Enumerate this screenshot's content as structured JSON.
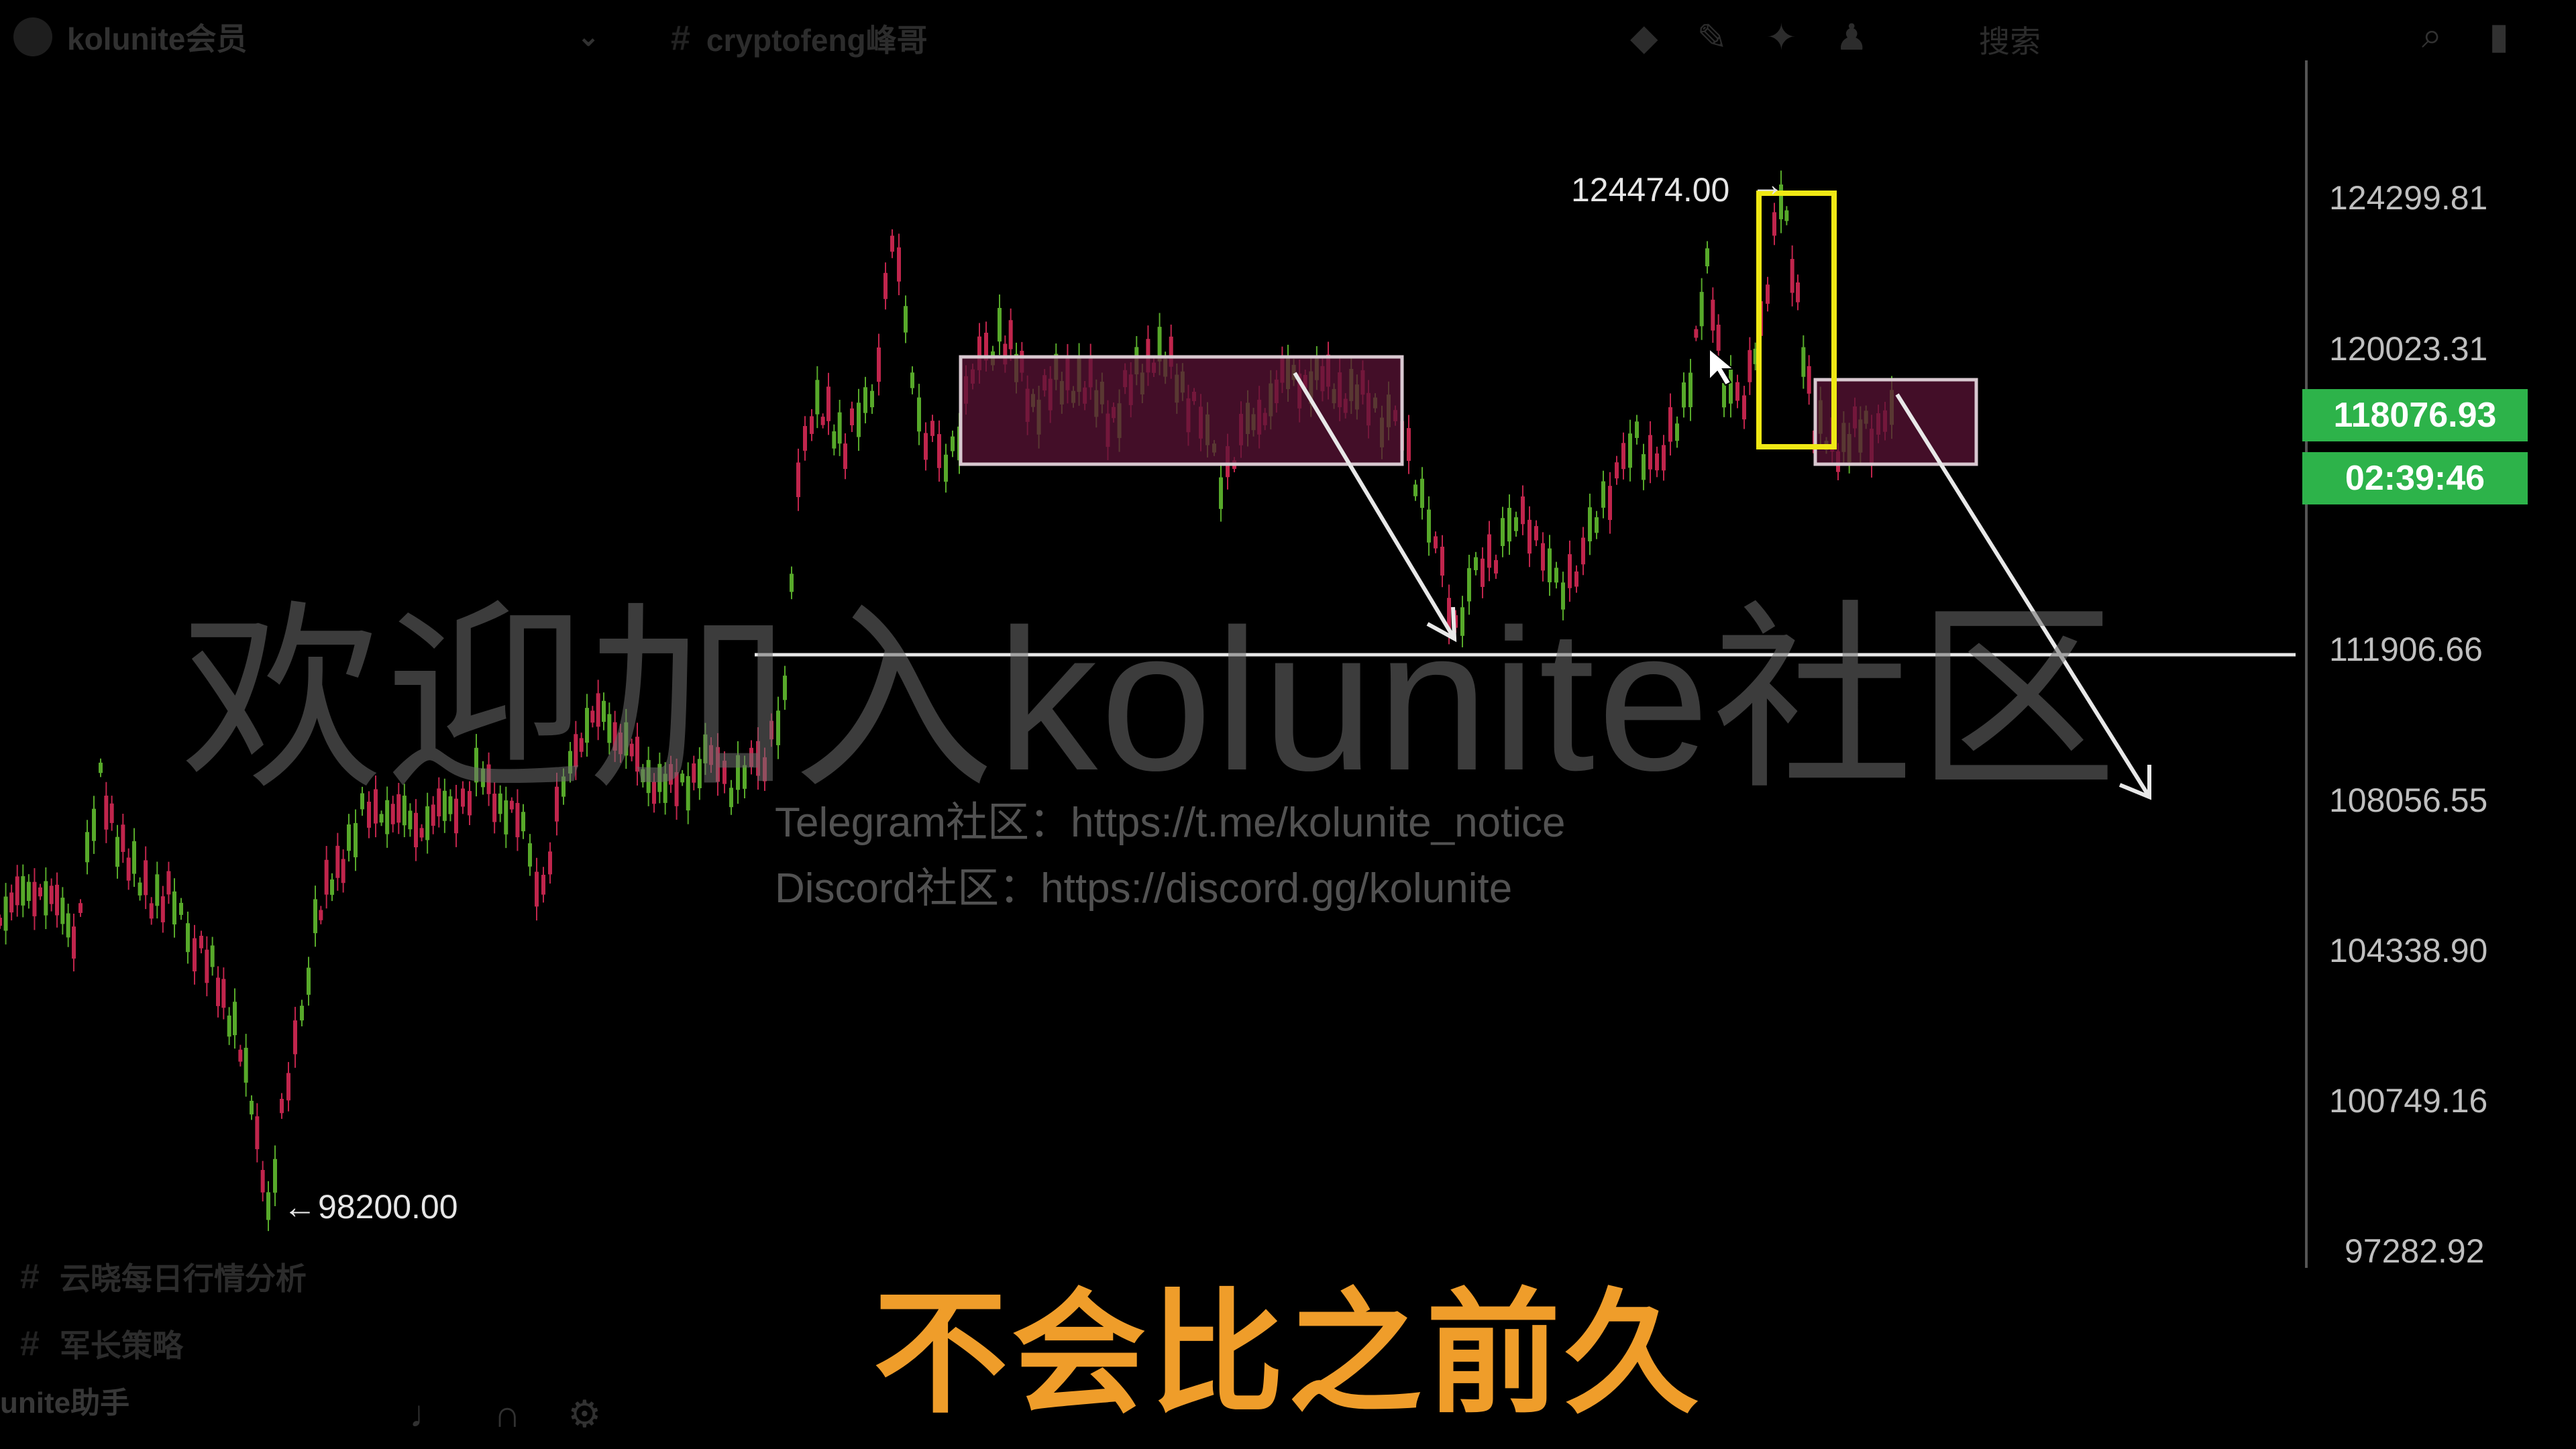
{
  "server": {
    "name": "kolunite会员",
    "chevron": "chevron-down-icon"
  },
  "channel": {
    "name": "cryptofeng峰哥",
    "icon": "hash-icon"
  },
  "header": {
    "search_placeholder": "搜索",
    "icons": [
      "threads-icon",
      "mute-icon",
      "pin-icon",
      "members-icon"
    ]
  },
  "sidebar": {
    "channels": [
      {
        "label": "云晓每日行情分析"
      },
      {
        "label": "军长策略"
      }
    ],
    "user": "unite助手"
  },
  "chart_data": {
    "type": "candlestick",
    "y_ticks": [
      "124299.81",
      "120023.31",
      "111906.66",
      "108056.55",
      "104338.90",
      "100749.16",
      "97282.92"
    ],
    "current_price": "118076.93",
    "countdown": "02:39:46",
    "annotations": {
      "high_label": "124474.00",
      "low_label": "98200.00",
      "support_level": 111906.66
    },
    "colors": {
      "up": "#c0254c",
      "down": "#57a92a",
      "box": "#5a1336",
      "highlight": "#f0e814",
      "current": "#2db34a"
    }
  },
  "watermark": {
    "title": "欢迎加入kolunite社区",
    "telegram": "Telegram社区：https://t.me/kolunite_notice",
    "discord": "Discord社区：https://discord.gg/kolunite"
  },
  "subtitle": "不会比之前久"
}
